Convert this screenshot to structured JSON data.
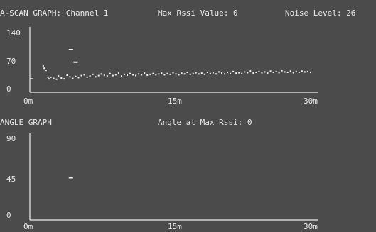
{
  "ascan": {
    "title": "A-SCAN GRAPH: Channel 1",
    "max_rssi_label": "Max Rssi Value: 0",
    "noise_label": "Noise Level: 26",
    "y_ticks": [
      "140",
      "70",
      "0"
    ],
    "x_ticks": [
      "0m",
      "15m",
      "30m"
    ],
    "noise_level": 26,
    "y_max": 140,
    "x_max_m": 30
  },
  "angle": {
    "title": "ANGLE GRAPH",
    "angle_label": "Angle at Max Rssi: 0",
    "y_ticks": [
      "90",
      "45",
      "0"
    ],
    "x_ticks": [
      "0m",
      "15m",
      "30m"
    ],
    "y_max": 90,
    "x_max_m": 30
  },
  "chart_data": [
    {
      "type": "scatter",
      "title": "A-SCAN GRAPH: Channel 1",
      "xlabel": "",
      "ylabel": "",
      "xlim": [
        0,
        30
      ],
      "ylim": [
        0,
        140
      ],
      "x_tick_labels": [
        "0m",
        "15m",
        "30m"
      ],
      "y_tick_labels": [
        "140",
        "70",
        "0"
      ],
      "series": [
        {
          "x": [
            1.4,
            1.5,
            1.7,
            1.9,
            2.0,
            2.2,
            2.5,
            2.8,
            3.0,
            3.3,
            3.6,
            3.9,
            4.2,
            4.5,
            4.8,
            5.1,
            5.4,
            5.7,
            6.0,
            6.3,
            6.6,
            6.9,
            7.2,
            7.5,
            7.8,
            8.1,
            8.4,
            8.7,
            9.0,
            9.3,
            9.6,
            9.9,
            10.2,
            10.5,
            10.8,
            11.1,
            11.4,
            11.7,
            12.0,
            12.3,
            12.6,
            12.9,
            13.2,
            13.5,
            13.8,
            14.1,
            14.4,
            14.7,
            15.0,
            15.3,
            15.6,
            15.9,
            16.2,
            16.5,
            16.8,
            17.1,
            17.4,
            17.7,
            18.0,
            18.3,
            18.6,
            18.9,
            19.2,
            19.5,
            19.8,
            20.1,
            20.4,
            20.7,
            21.0,
            21.3,
            21.6,
            21.9,
            22.2,
            22.5,
            22.8,
            23.1,
            23.4,
            23.7,
            24.0,
            24.3,
            24.6,
            24.9,
            25.2,
            25.5,
            25.8,
            26.1,
            26.4,
            26.7,
            27.0,
            27.3,
            27.6,
            27.9,
            28.2,
            28.5,
            28.8,
            29.1,
            29.4
          ],
          "y": [
            58,
            52,
            47,
            30,
            26,
            30,
            27,
            25,
            33,
            28,
            26,
            35,
            31,
            27,
            32,
            29,
            34,
            36,
            30,
            33,
            37,
            31,
            34,
            38,
            35,
            33,
            39,
            34,
            36,
            40,
            33,
            37,
            35,
            39,
            36,
            34,
            38,
            36,
            40,
            35,
            37,
            39,
            36,
            38,
            40,
            36,
            39,
            37,
            41,
            38,
            36,
            40,
            38,
            42,
            37,
            39,
            41,
            38,
            40,
            37,
            42,
            39,
            41,
            38,
            43,
            40,
            38,
            42,
            39,
            44,
            40,
            41,
            39,
            43,
            41,
            45,
            40,
            42,
            44,
            41,
            43,
            40,
            45,
            42,
            44,
            41,
            46,
            43,
            42,
            45,
            41,
            44,
            42,
            45,
            43,
            44,
            42
          ]
        }
      ],
      "markers": [
        {
          "x": 4.3,
          "y": 98
        },
        {
          "x": 4.8,
          "y": 67
        }
      ],
      "noise_level": 26
    },
    {
      "type": "scatter",
      "title": "ANGLE GRAPH",
      "xlabel": "",
      "ylabel": "",
      "xlim": [
        0,
        30
      ],
      "ylim": [
        0,
        90
      ],
      "x_tick_labels": [
        "0m",
        "15m",
        "30m"
      ],
      "y_tick_labels": [
        "90",
        "45",
        "0"
      ],
      "series": [
        {
          "x": [
            4.3
          ],
          "y": [
            45
          ]
        }
      ]
    }
  ]
}
